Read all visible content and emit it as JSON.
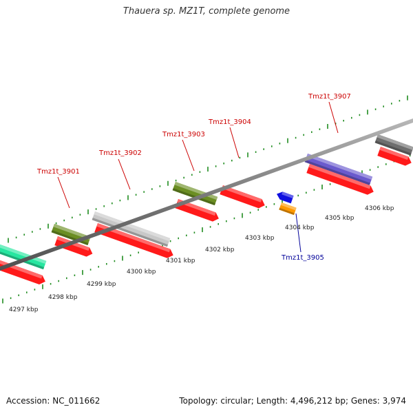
{
  "title": "Thauera sp. MZ1T, complete genome",
  "footer": {
    "accession": "Accession: NC_011662",
    "summary": "Topology: circular; Length: 4,496,212 bp; Genes: 3,974"
  },
  "colors": {
    "backbone": "#8a8a8a",
    "tick": "#1f8c1f",
    "cds_forward": "#ff1a1a",
    "cds_reverse": "#1010e0",
    "label_forward": "#cc0000",
    "label_reverse": "#000099"
  },
  "scale_labels": [
    "4297 kbp",
    "4298 kbp",
    "4299 kbp",
    "4300 kbp",
    "4301 kbp",
    "4302 kbp",
    "4303 kbp",
    "4304 kbp",
    "4305 kbp",
    "4306 kbp"
  ],
  "gene_labels": [
    {
      "name": "Tmz1t_3901",
      "strand": "forward"
    },
    {
      "name": "Tmz1t_3902",
      "strand": "forward"
    },
    {
      "name": "Tmz1t_3903",
      "strand": "forward"
    },
    {
      "name": "Tmz1t_3904",
      "strand": "forward"
    },
    {
      "name": "Tmz1t_3905",
      "strand": "reverse"
    },
    {
      "name": "Tmz1t_3907",
      "strand": "forward"
    }
  ],
  "feature_classes": [
    {
      "id": "cog-teal",
      "color": "#27e6a0"
    },
    {
      "id": "cog-olive",
      "color": "#6b8e23"
    },
    {
      "id": "cog-light-gray",
      "color": "#c8c8c8"
    },
    {
      "id": "cog-purple",
      "color": "#6a5acd"
    },
    {
      "id": "cog-dark-gray",
      "color": "#6e6e6e"
    },
    {
      "id": "cog-orange",
      "color": "#ff9900"
    }
  ]
}
